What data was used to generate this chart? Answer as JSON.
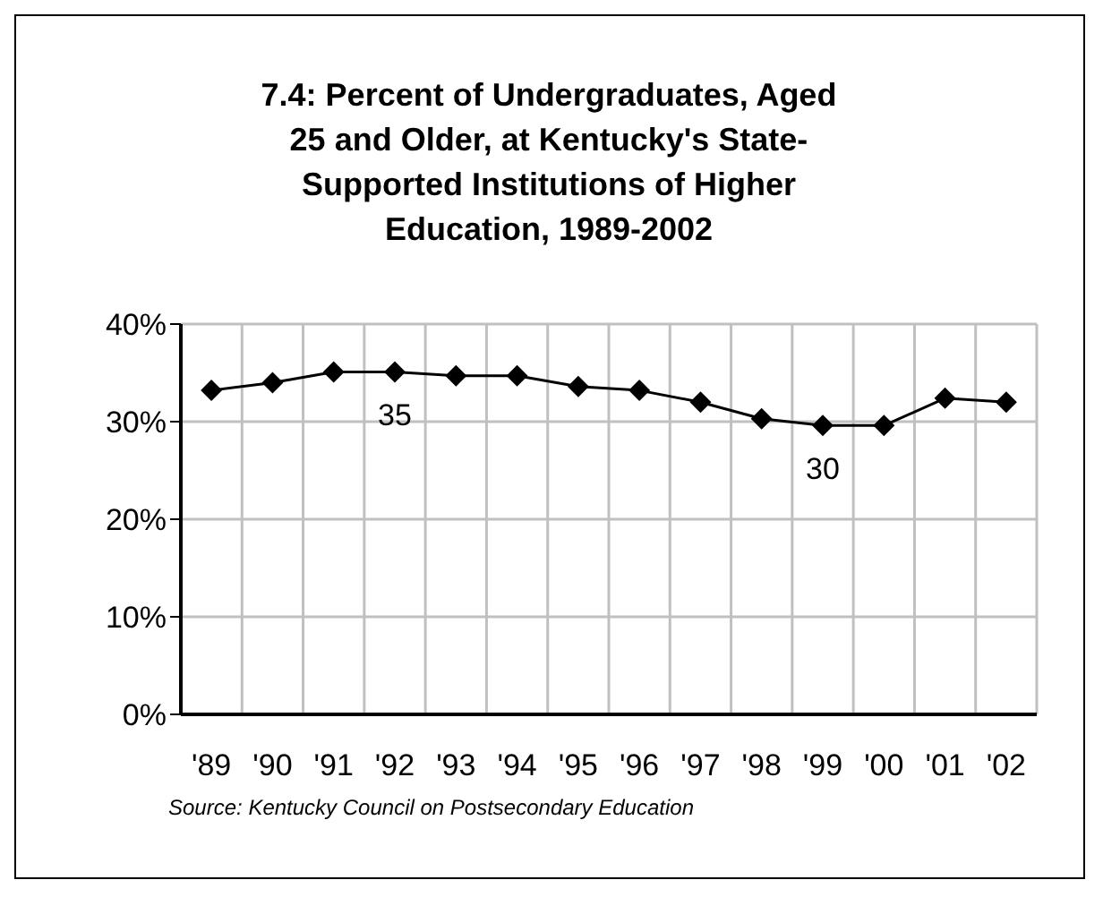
{
  "chart_data": {
    "type": "line",
    "title": "7.4:  Percent of Undergraduates, Aged 25 and Older, at Kentucky's State-Supported Institutions of Higher Education, 1989-2002",
    "categories": [
      "'89",
      "'90",
      "'91",
      "'92",
      "'93",
      "'94",
      "'95",
      "'96",
      "'97",
      "'98",
      "'99",
      "'00",
      "'01",
      "'02"
    ],
    "series": [
      {
        "color": "#000000",
        "values": [
          33.2,
          34.0,
          35.1,
          35.1,
          34.7,
          34.7,
          33.6,
          33.2,
          32.0,
          30.3,
          29.6,
          29.6,
          32.4,
          32.0
        ],
        "value_labels": [
          null,
          null,
          null,
          "35",
          null,
          null,
          null,
          null,
          null,
          null,
          "30",
          null,
          null,
          null
        ]
      }
    ],
    "ylim": [
      0,
      40
    ],
    "yticks": [
      {
        "value": 0,
        "label": "0%"
      },
      {
        "value": 10,
        "label": "10%"
      },
      {
        "value": 20,
        "label": "20%"
      },
      {
        "value": 30,
        "label": "30%"
      },
      {
        "value": 40,
        "label": "40%"
      }
    ],
    "grid": true,
    "marker": "diamond",
    "line_style": "solid",
    "annotations": [
      "Source: Kentucky Council on Postsecondary Education"
    ]
  }
}
